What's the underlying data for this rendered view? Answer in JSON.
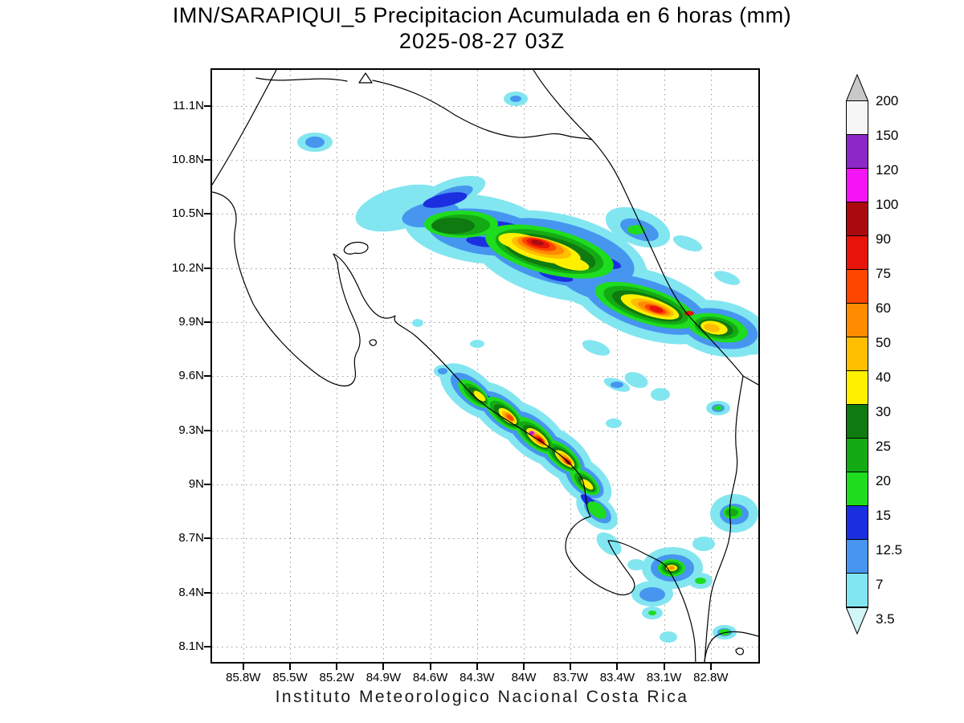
{
  "header": {
    "title": "IMN/SARAPIQUI_5 Precipitacion Acumulada en 6 horas (mm)",
    "datetime": "2025-08-27 03Z"
  },
  "footer": {
    "caption": "Instituto Meteorologico Nacional Costa Rica"
  },
  "axes": {
    "lat_labels": [
      "11.1N",
      "10.8N",
      "10.5N",
      "10.2N",
      "9.9N",
      "9.6N",
      "9.3N",
      "9N",
      "8.7N",
      "8.4N",
      "8.1N"
    ],
    "lon_labels": [
      "85.8W",
      "85.5W",
      "85.2W",
      "84.9W",
      "84.6W",
      "84.3W",
      "84W",
      "83.7W",
      "83.4W",
      "83.1W",
      "82.8W"
    ]
  },
  "colorbar": {
    "units": "mm",
    "top_arrow_color": "#C8C8C8",
    "bottom_arrow_color": "#D2F5F5",
    "bottom_label": "3.5",
    "segments": [
      {
        "label": "200",
        "color": "#F6F6F6"
      },
      {
        "label": "150",
        "color": "#8C28C8"
      },
      {
        "label": "120",
        "color": "#F514F5"
      },
      {
        "label": "100",
        "color": "#AA0A0F"
      },
      {
        "label": "90",
        "color": "#E6140A"
      },
      {
        "label": "75",
        "color": "#FF4600"
      },
      {
        "label": "60",
        "color": "#FF8C00"
      },
      {
        "label": "50",
        "color": "#FFBE00"
      },
      {
        "label": "40",
        "color": "#FFF000"
      },
      {
        "label": "30",
        "color": "#0F7A0F"
      },
      {
        "label": "25",
        "color": "#14AA14"
      },
      {
        "label": "20",
        "color": "#1EDC1E"
      },
      {
        "label": "15",
        "color": "#1B2FE0"
      },
      {
        "label": "12.5",
        "color": "#4696F0"
      },
      {
        "label": "7",
        "color": "#82E6F0"
      }
    ]
  },
  "chart_data": {
    "type": "heatmap",
    "title": "IMN/SARAPIQUI_5 Precipitacion Acumulada en 6 horas (mm)",
    "subtitle": "2025-08-27 03Z",
    "units": "mm",
    "x_ticks": [
      "85.8W",
      "85.5W",
      "85.2W",
      "84.9W",
      "84.6W",
      "84.3W",
      "84W",
      "83.7W",
      "83.4W",
      "83.1W",
      "82.8W"
    ],
    "y_ticks": [
      "11.1N",
      "10.8N",
      "10.5N",
      "10.2N",
      "9.9N",
      "9.6N",
      "9.3N",
      "9N",
      "8.7N",
      "8.4N",
      "8.1N"
    ],
    "xlim": [
      "86.0W",
      "82.5W"
    ],
    "ylim": [
      "8.0N",
      "11.3N"
    ],
    "grid": "dotted",
    "legend_position": "right-colorbar",
    "levels": [
      3.5,
      7,
      12.5,
      15,
      20,
      25,
      30,
      40,
      50,
      60,
      75,
      90,
      100,
      120,
      150,
      200
    ],
    "level_colors_low_to_high": [
      "#D2F5F5",
      "#82E6F0",
      "#4696F0",
      "#1B2FE0",
      "#1EDC1E",
      "#14AA14",
      "#0F7A0F",
      "#FFF000",
      "#FFBE00",
      "#FF8C00",
      "#FF4600",
      "#E6140A",
      "#AA0A0F",
      "#F514F5",
      "#8C28C8",
      "#F6F6F6",
      "#C8C8C8"
    ],
    "features": [
      {
        "name": "caribbean-slope-band",
        "extent": "85.0W-82.6W / 10.6N-9.8N",
        "description": "Elongated WSW-ENE precipitation band over the northern Caribbean slope; cores 75-100 mm near 83.9W 10.35N and 83.2W 10.0N, secondary orange-yellow maxima near the right (eastern) edge around 82.8W 9.95N"
      },
      {
        "name": "talamanca-band",
        "extent": "84.4W-83.5W / 9.6N-8.9N",
        "description": "NW-SE band along the Talamanca cordillera; cores 90-150 mm with small 100-150 mm (magenta/purple) spots near 83.95W 9.28N and 83.7W 9.15N"
      },
      {
        "name": "southern-pacific-cells",
        "extent": "83.5W-82.6W / 8.9N-8.1N",
        "description": "Scattered convective cells 3.5-60 mm; small 40-75 mm core near 83.05W 8.55N (Golfito area) and light-moderate cells toward Panama border"
      },
      {
        "name": "isolated-light-cells",
        "description": "Scattered 3.5-15 mm cells elsewhere: small blue-cyan spot near 85.35W 10.9N, tiny cell near 84.05W 11.15N, light cyan patches between the two main bands"
      }
    ]
  }
}
